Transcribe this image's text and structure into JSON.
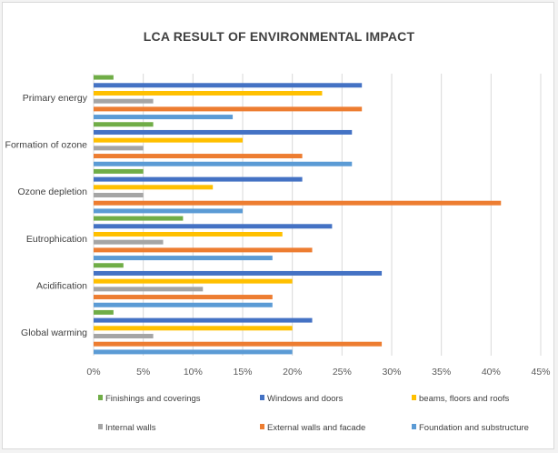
{
  "chart_data": {
    "type": "bar",
    "orientation": "horizontal",
    "title": "LCA RESULT OF ENVIRONMENTAL IMPACT",
    "xlabel": "",
    "ylabel": "",
    "xlim": [
      0,
      45
    ],
    "x_unit": "%",
    "x_ticks": [
      "0%",
      "5%",
      "10%",
      "15%",
      "20%",
      "25%",
      "30%",
      "35%",
      "40%",
      "45%"
    ],
    "grid": "vertical",
    "legend_position": "bottom",
    "categories": [
      "Primary energy",
      "Formation of ozone",
      "Ozone depletion",
      "Eutrophication",
      "Acidification",
      "Global warming"
    ],
    "series": [
      {
        "name": "Finishings and coverings",
        "color": "#70ad47",
        "values": [
          2,
          6,
          5,
          9,
          3,
          2
        ]
      },
      {
        "name": "Windows and doors",
        "color": "#4472c4",
        "values": [
          27,
          26,
          21,
          24,
          29,
          22
        ]
      },
      {
        "name": "beams, floors and roofs",
        "color": "#ffc000",
        "values": [
          23,
          15,
          12,
          19,
          20,
          20
        ]
      },
      {
        "name": "Internal walls",
        "color": "#a5a5a5",
        "values": [
          6,
          5,
          5,
          7,
          11,
          6
        ]
      },
      {
        "name": "External walls and facade",
        "color": "#ed7d31",
        "values": [
          27,
          21,
          41,
          22,
          18,
          29
        ]
      },
      {
        "name": "Foundation and substructure",
        "color": "#5b9bd5",
        "values": [
          14,
          26,
          15,
          18,
          18,
          20
        ]
      }
    ]
  }
}
